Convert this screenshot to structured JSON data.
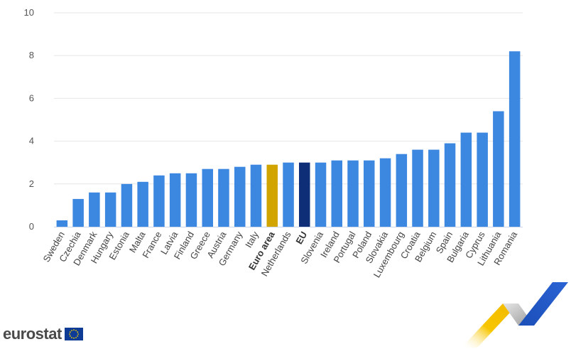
{
  "chart_data": {
    "type": "bar",
    "title": "",
    "xlabel": "",
    "ylabel": "",
    "ylim": [
      0,
      10
    ],
    "yticks": [
      0,
      2,
      4,
      6,
      8,
      10
    ],
    "grid": true,
    "categories": [
      "Sweden",
      "Czechia",
      "Denmark",
      "Hungary",
      "Estonia",
      "Malta",
      "France",
      "Latvia",
      "Finland",
      "Greece",
      "Austria",
      "Germany",
      "Italy",
      "Euro area",
      "Netherlands",
      "EU",
      "Slovenia",
      "Ireland",
      "Portugal",
      "Poland",
      "Slovakia",
      "Luxembourg",
      "Croatia",
      "Belgium",
      "Spain",
      "Bulgaria",
      "Cyprus",
      "Lithuania",
      "Romania"
    ],
    "values": [
      0.3,
      1.3,
      1.6,
      1.6,
      2.0,
      2.1,
      2.4,
      2.5,
      2.5,
      2.7,
      2.7,
      2.8,
      2.9,
      2.9,
      3.0,
      3.0,
      3.0,
      3.1,
      3.1,
      3.1,
      3.2,
      3.4,
      3.6,
      3.6,
      3.9,
      4.4,
      4.4,
      5.4,
      8.2
    ],
    "highlight": {
      "Euro area": "#d1a400",
      "EU": "#0e2f78"
    },
    "bold_categories": [
      "Euro area",
      "EU"
    ],
    "bar_color": "#3c87e0",
    "grid_color": "#e6e6e6"
  },
  "brand": {
    "name": "eurostat"
  }
}
